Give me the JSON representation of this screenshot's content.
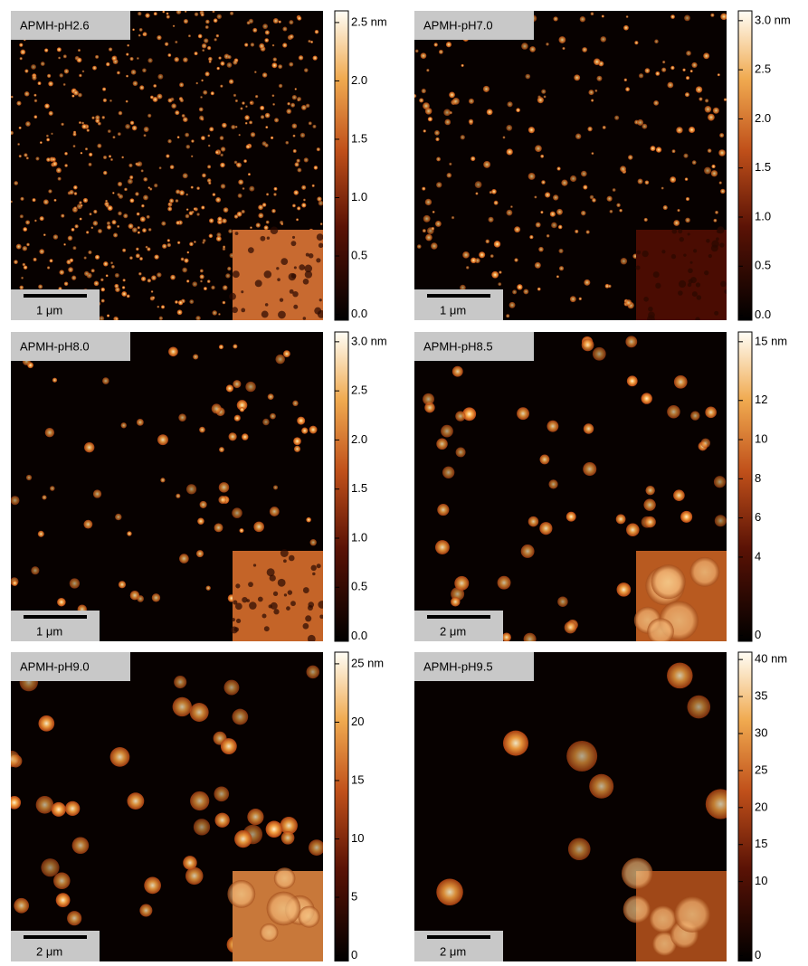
{
  "panels": [
    {
      "label": "APMH-pH2.6",
      "scale_bar": "1 μm",
      "colorbar": {
        "ylim": [
          -0.05,
          2.6
        ],
        "yticks": [
          {
            "value": 0,
            "label": "0.0"
          },
          0.5,
          {
            "value": 1,
            "label": "1.0"
          },
          1.5,
          {
            "value": 2,
            "label": "2.0"
          },
          {
            "value": 2.5,
            "label": "2.5 nm"
          }
        ]
      }
    },
    {
      "label": "APMH-pH7.0",
      "scale_bar": "1 μm",
      "colorbar": {
        "ylim": [
          -0.05,
          3.1
        ],
        "yticks": [
          {
            "value": 0,
            "label": "0.0"
          },
          0.5,
          {
            "value": 1,
            "label": "1.0"
          },
          1.5,
          {
            "value": 2,
            "label": "2.0"
          },
          2.5,
          {
            "value": 3,
            "label": "3.0 nm"
          }
        ]
      }
    },
    {
      "label": "APMH-pH8.0",
      "scale_bar": "1 μm",
      "colorbar": {
        "ylim": [
          -0.05,
          3.1
        ],
        "yticks": [
          {
            "value": 0,
            "label": "0.0"
          },
          0.5,
          {
            "value": 1,
            "label": "1.0"
          },
          1.5,
          {
            "value": 2,
            "label": "2.0"
          },
          2.5,
          {
            "value": 3,
            "label": "3.0 nm"
          }
        ]
      }
    },
    {
      "label": "APMH-pH8.5",
      "scale_bar": "2 μm",
      "colorbar": {
        "ylim": [
          -0.3,
          15.5
        ],
        "yticks": [
          0,
          4,
          6,
          8,
          10,
          12,
          {
            "value": 15,
            "label": "15 nm"
          }
        ]
      }
    },
    {
      "label": "APMH-pH9.0",
      "scale_bar": "2 μm",
      "colorbar": {
        "ylim": [
          -0.5,
          26
        ],
        "yticks": [
          0,
          5,
          10,
          15,
          20,
          {
            "value": 25,
            "label": "25 nm"
          }
        ]
      }
    },
    {
      "label": "APMH-pH9.5",
      "scale_bar": "2 μm",
      "colorbar": {
        "ylim": [
          -0.8,
          41
        ],
        "yticks": [
          0,
          10,
          15,
          20,
          25,
          30,
          35,
          {
            "value": 40,
            "label": "40 nm"
          }
        ]
      }
    }
  ]
}
